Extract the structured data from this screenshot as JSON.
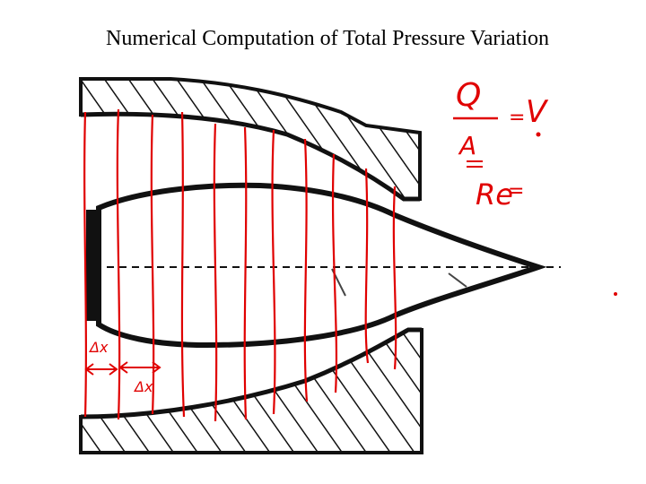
{
  "slide": {
    "title": "Numerical Computation of Total Pressure Variation"
  },
  "annotations": {
    "formula_top": "Q",
    "formula_bottom": "A",
    "formula_result": "V",
    "formula_next": "Re",
    "dx_label_1": "Δx",
    "dx_label_2": "Δx"
  },
  "colors": {
    "ink": "#111111",
    "red_pen": "#e00000"
  }
}
